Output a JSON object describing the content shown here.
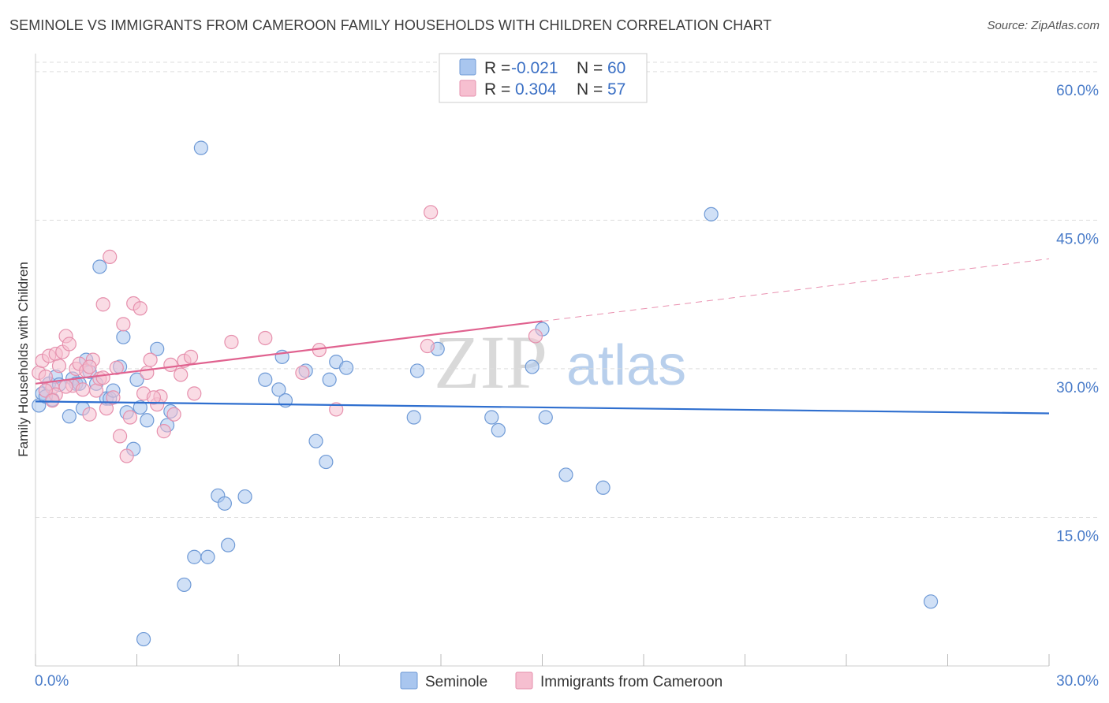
{
  "header": {
    "title": "SEMINOLE VS IMMIGRANTS FROM CAMEROON FAMILY HOUSEHOLDS WITH CHILDREN CORRELATION CHART",
    "source": "Source: ZipAtlas.com"
  },
  "watermark": {
    "zip": "ZIP",
    "atlas": "atlas"
  },
  "colors": {
    "seminole_fill": "#a9c6ef",
    "seminole_stroke": "#6f9ad6",
    "seminole_line": "#2f6fcf",
    "cameroon_fill": "#f6bfd0",
    "cameroon_stroke": "#e690ad",
    "cameroon_line": "#e0628f",
    "grid": "#dddddd",
    "tick_text": "#4a7cc9"
  },
  "stats_legend": {
    "rows": [
      {
        "r_label": "R =",
        "r_value": "-0.021",
        "n_label": "N =",
        "n_value": "60"
      },
      {
        "r_label": "R =",
        "r_value": "0.304",
        "n_label": "N =",
        "n_value": "57"
      }
    ]
  },
  "bottom_legend": {
    "items": [
      "Seminole",
      "Immigrants from Cameroon"
    ]
  },
  "chart_data": {
    "type": "scatter",
    "title": "SEMINOLE VS IMMIGRANTS FROM CAMEROON FAMILY HOUSEHOLDS WITH CHILDREN CORRELATION CHART",
    "xlabel": "",
    "ylabel": "Family Households with Children",
    "xlim": [
      0,
      30
    ],
    "ylim": [
      0,
      61.5
    ],
    "x_tick_labels": [
      "0.0%",
      "30.0%"
    ],
    "y_ticks": [
      15,
      30,
      45,
      60
    ],
    "y_tick_labels": [
      "15.0%",
      "30.0%",
      "45.0%",
      "60.0%"
    ],
    "grid": true,
    "series": [
      {
        "name": "Seminole",
        "r": -0.021,
        "n": 60,
        "trend": {
          "x": [
            0,
            30
          ],
          "y": [
            26.7,
            25.5
          ]
        },
        "points": [
          [
            0.1,
            26.3
          ],
          [
            0.2,
            27.5
          ],
          [
            0.4,
            28.5
          ],
          [
            0.5,
            26.9
          ],
          [
            0.6,
            29.2
          ],
          [
            0.7,
            28.4
          ],
          [
            1.0,
            25.2
          ],
          [
            1.1,
            29.0
          ],
          [
            1.2,
            28.5
          ],
          [
            1.4,
            26.0
          ],
          [
            1.5,
            30.9
          ],
          [
            1.6,
            29.7
          ],
          [
            1.8,
            28.5
          ],
          [
            1.9,
            40.3
          ],
          [
            2.1,
            27.0
          ],
          [
            2.2,
            27.0
          ],
          [
            2.3,
            27.8
          ],
          [
            2.5,
            30.2
          ],
          [
            2.6,
            33.2
          ],
          [
            2.7,
            25.6
          ],
          [
            2.9,
            21.9
          ],
          [
            3.0,
            28.9
          ],
          [
            3.1,
            26.1
          ],
          [
            3.3,
            24.8
          ],
          [
            3.6,
            32.0
          ],
          [
            3.9,
            24.3
          ],
          [
            4.0,
            25.7
          ],
          [
            4.4,
            8.2
          ],
          [
            4.7,
            11.0
          ],
          [
            4.9,
            52.3
          ],
          [
            5.1,
            11.0
          ],
          [
            5.4,
            17.2
          ],
          [
            5.6,
            16.4
          ],
          [
            5.7,
            12.2
          ],
          [
            6.2,
            17.1
          ],
          [
            6.8,
            28.9
          ],
          [
            7.2,
            27.9
          ],
          [
            7.3,
            31.2
          ],
          [
            7.4,
            26.8
          ],
          [
            8.0,
            29.8
          ],
          [
            8.3,
            22.7
          ],
          [
            8.6,
            20.6
          ],
          [
            8.7,
            28.9
          ],
          [
            8.9,
            30.7
          ],
          [
            9.2,
            30.1
          ],
          [
            11.2,
            25.1
          ],
          [
            11.3,
            29.8
          ],
          [
            11.9,
            32.0
          ],
          [
            13.5,
            25.1
          ],
          [
            13.7,
            23.8
          ],
          [
            14.7,
            30.2
          ],
          [
            15.0,
            34.0
          ],
          [
            15.1,
            25.1
          ],
          [
            15.7,
            19.3
          ],
          [
            16.8,
            18.0
          ],
          [
            20.0,
            45.6
          ],
          [
            26.5,
            6.5
          ],
          [
            3.2,
            2.7
          ],
          [
            0.3,
            27.2
          ],
          [
            1.3,
            28.5
          ]
        ]
      },
      {
        "name": "Immigrants from Cameroon",
        "r": 0.304,
        "n": 57,
        "trend": {
          "x": [
            0,
            15.0
          ],
          "y": [
            28.5,
            34.8
          ]
        },
        "trend_dashed": {
          "x": [
            15.0,
            30
          ],
          "y": [
            34.8,
            41.1
          ]
        },
        "points": [
          [
            0.1,
            29.6
          ],
          [
            0.2,
            30.8
          ],
          [
            0.3,
            29.2
          ],
          [
            0.4,
            31.3
          ],
          [
            0.5,
            28.1
          ],
          [
            0.6,
            31.5
          ],
          [
            0.6,
            27.4
          ],
          [
            0.7,
            30.3
          ],
          [
            0.8,
            31.7
          ],
          [
            0.9,
            33.3
          ],
          [
            1.0,
            32.5
          ],
          [
            1.1,
            28.3
          ],
          [
            1.2,
            30.0
          ],
          [
            1.3,
            30.5
          ],
          [
            1.4,
            27.9
          ],
          [
            1.5,
            29.8
          ],
          [
            1.6,
            25.4
          ],
          [
            1.7,
            30.9
          ],
          [
            1.8,
            27.8
          ],
          [
            1.9,
            29.0
          ],
          [
            2.0,
            36.5
          ],
          [
            2.1,
            26.0
          ],
          [
            2.2,
            41.3
          ],
          [
            2.3,
            27.1
          ],
          [
            2.4,
            30.1
          ],
          [
            2.5,
            23.2
          ],
          [
            2.6,
            34.5
          ],
          [
            2.7,
            21.2
          ],
          [
            2.8,
            25.1
          ],
          [
            2.9,
            36.6
          ],
          [
            3.1,
            36.1
          ],
          [
            3.2,
            27.5
          ],
          [
            3.3,
            29.6
          ],
          [
            3.4,
            30.9
          ],
          [
            3.6,
            26.4
          ],
          [
            3.7,
            27.2
          ],
          [
            3.8,
            23.7
          ],
          [
            4.0,
            30.4
          ],
          [
            4.1,
            25.4
          ],
          [
            4.3,
            29.4
          ],
          [
            4.4,
            30.8
          ],
          [
            4.6,
            31.2
          ],
          [
            4.7,
            27.5
          ],
          [
            5.8,
            32.7
          ],
          [
            6.8,
            33.1
          ],
          [
            7.9,
            29.6
          ],
          [
            8.4,
            31.9
          ],
          [
            8.9,
            25.9
          ],
          [
            11.6,
            32.3
          ],
          [
            11.7,
            45.8
          ],
          [
            14.8,
            33.3
          ],
          [
            0.3,
            27.8
          ],
          [
            0.9,
            28.2
          ],
          [
            1.6,
            30.2
          ],
          [
            2.0,
            29.1
          ],
          [
            3.5,
            27.1
          ],
          [
            0.5,
            26.8
          ]
        ]
      }
    ]
  }
}
